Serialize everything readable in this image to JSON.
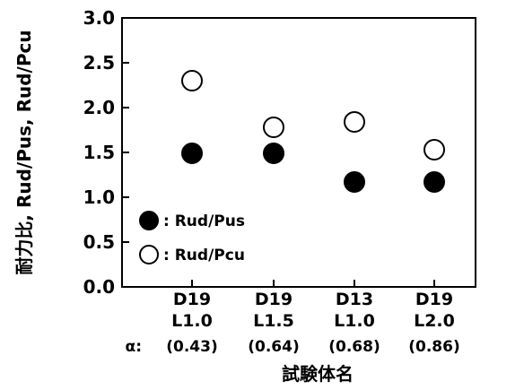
{
  "chart_data": {
    "type": "scatter",
    "xlabel": "試験体名",
    "ylabel": "耐力比, Rud/Pus, Rud/Pcu",
    "ylim": [
      0.0,
      3.0
    ],
    "yticks": [
      "0.0",
      "0.5",
      "1.0",
      "1.5",
      "2.0",
      "2.5",
      "3.0"
    ],
    "grid": false,
    "legend_placement": "bottom-left",
    "alpha_prefix": "α:",
    "categories": [
      {
        "line1": "D19",
        "line2": "L1.0",
        "alpha": "(0.43)"
      },
      {
        "line1": "D19",
        "line2": "L1.5",
        "alpha": "(0.64)"
      },
      {
        "line1": "D13",
        "line2": "L1.0",
        "alpha": "(0.68)"
      },
      {
        "line1": "D19",
        "line2": "L2.0",
        "alpha": "(0.86)"
      }
    ],
    "series": [
      {
        "name": ": Rud/Pus",
        "marker": "filled-circle",
        "values": [
          1.49,
          1.49,
          1.17,
          1.17
        ]
      },
      {
        "name": ": Rud/Pcu",
        "marker": "open-circle",
        "values": [
          2.3,
          1.78,
          1.84,
          1.53
        ]
      }
    ]
  }
}
